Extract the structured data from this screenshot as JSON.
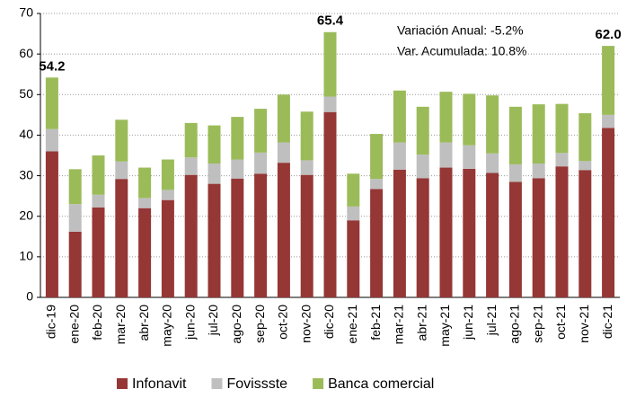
{
  "chart_data": {
    "type": "stacked_bar",
    "categories": [
      "dic-19",
      "ene-20",
      "feb-20",
      "mar-20",
      "abr-20",
      "may-20",
      "jun-20",
      "jul-20",
      "ago-20",
      "sep-20",
      "oct-20",
      "nov-20",
      "dic-20",
      "ene-21",
      "feb-21",
      "mar-21",
      "abr-21",
      "may-21",
      "jun-21",
      "jul-21",
      "ago-21",
      "sep-21",
      "oct-21",
      "nov-21",
      "dic-21"
    ],
    "series": [
      {
        "name": "Infonavit",
        "color": "#953735",
        "values": [
          36,
          16.2,
          22.2,
          29.2,
          22,
          24,
          30.2,
          28,
          29.3,
          30.5,
          33.2,
          30.2,
          45.7,
          19,
          26.7,
          31.5,
          29.4,
          32,
          31.7,
          30.7,
          28.5,
          29.4,
          32.3,
          31.4,
          41.8
        ]
      },
      {
        "name": "Fovissste",
        "color": "#bfbfbf",
        "values": [
          5.5,
          6.8,
          3.1,
          4.3,
          2.5,
          2.5,
          4.3,
          5,
          4.7,
          5.2,
          5,
          3.6,
          3.8,
          3.4,
          2.5,
          6.7,
          5.8,
          6.2,
          5.8,
          4.8,
          4.3,
          3.6,
          3.3,
          2.2,
          3.2
        ]
      },
      {
        "name": "Banca comercial",
        "color": "#9bbb59",
        "values": [
          12.7,
          8.6,
          9.7,
          10.3,
          7.5,
          7.5,
          8.5,
          9.4,
          10.5,
          10.8,
          11.8,
          12,
          15.9,
          8.1,
          11.1,
          12.8,
          11.8,
          12.5,
          12.7,
          14.3,
          14.2,
          14.6,
          12.1,
          11.8,
          17
        ]
      }
    ],
    "total_labels": [
      {
        "category": "dic-19",
        "text": "54.2"
      },
      {
        "category": "dic-20",
        "text": "65.4"
      },
      {
        "category": "dic-21",
        "text": "62.0"
      }
    ],
    "annotations": [
      "Variación Anual: -5.2%",
      "Var. Acumulada: 10.8%"
    ],
    "ylim": [
      0,
      70
    ],
    "yticks": [
      0,
      10,
      20,
      30,
      40,
      50,
      60,
      70
    ],
    "grid": true,
    "legend": "bottom"
  }
}
